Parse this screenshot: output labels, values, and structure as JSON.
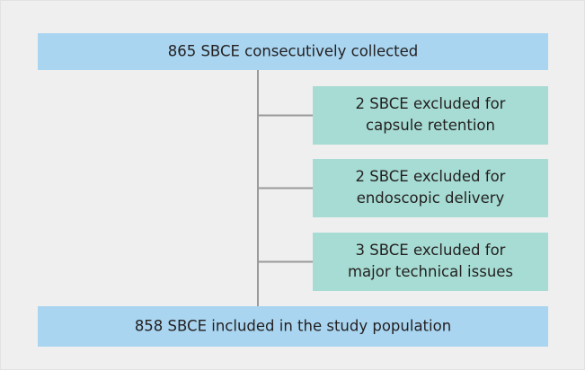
{
  "top": {
    "label": "865 SBCE consecutively collected"
  },
  "exclusions": [
    {
      "lines": [
        "2 SBCE excluded for",
        "capsule retention"
      ]
    },
    {
      "lines": [
        "2 SBCE excluded for",
        "endoscopic delivery"
      ]
    },
    {
      "lines": [
        "3 SBCE excluded for",
        "major technical issues"
      ]
    }
  ],
  "bottom": {
    "label": "858 SBCE included in the study population"
  }
}
